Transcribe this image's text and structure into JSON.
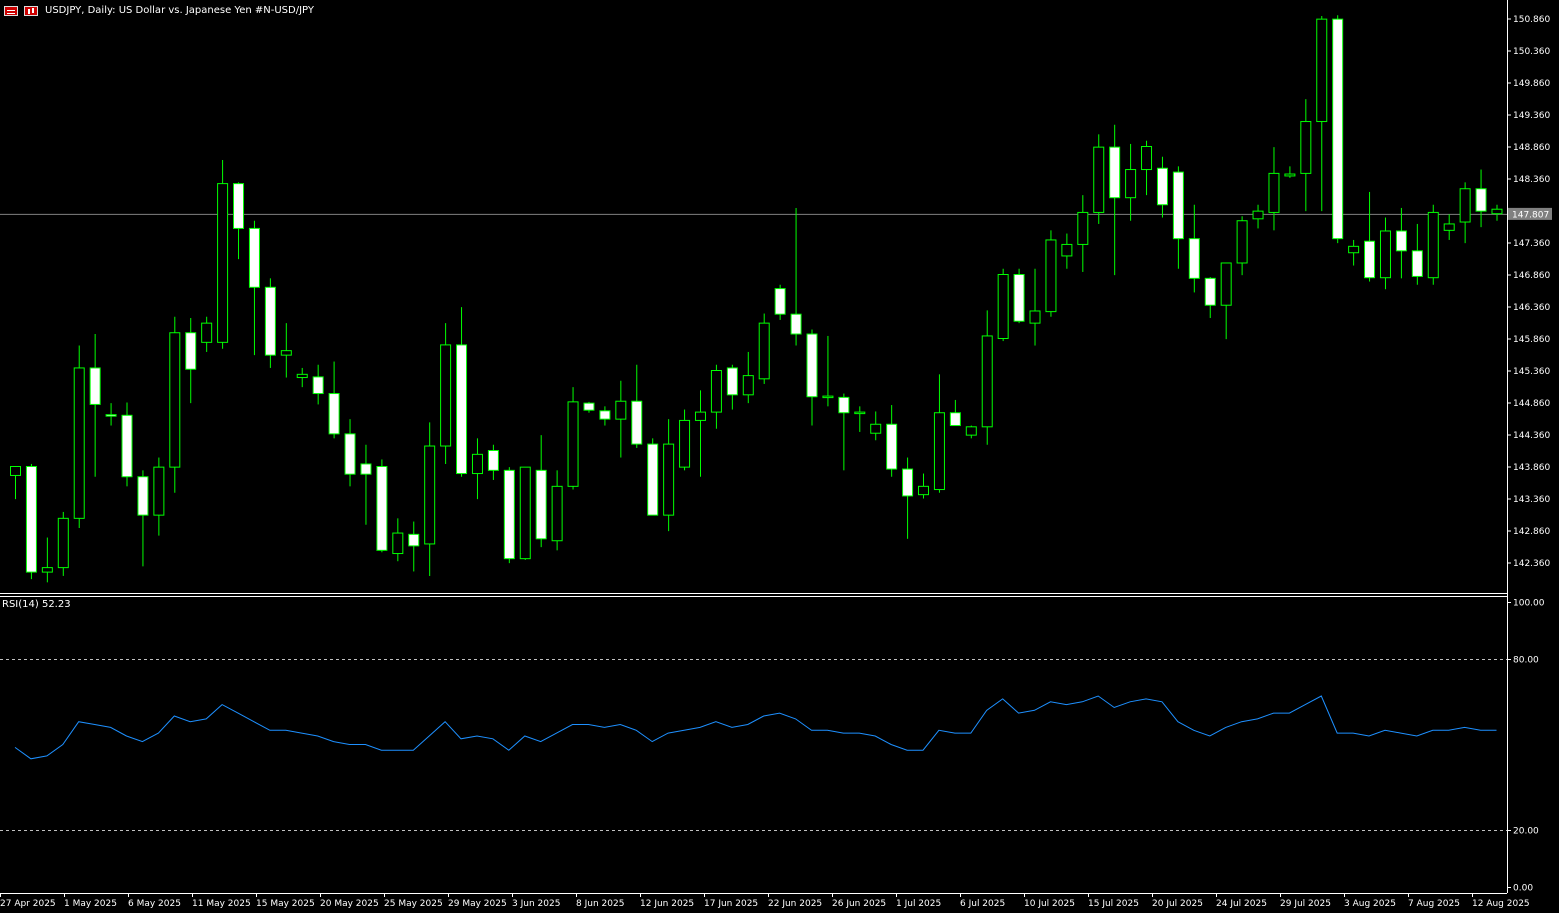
{
  "window": {
    "title": "USDJPY, Daily:  US Dollar vs. Japanese Yen #N-USD/JPY",
    "icons": [
      "table-icon",
      "bar-chart-icon"
    ]
  },
  "price_axis": {
    "labels": [
      "150.860",
      "150.360",
      "149.860",
      "149.360",
      "148.860",
      "148.360",
      "147.360",
      "146.860",
      "146.360",
      "145.860",
      "145.360",
      "144.860",
      "144.360",
      "143.860",
      "143.360",
      "142.860",
      "142.360"
    ],
    "current_price": "147.807"
  },
  "rsi": {
    "label": "RSI(14) 52.23",
    "axis_labels": [
      "100.00",
      "80.00",
      "20.00",
      "0.00"
    ]
  },
  "time_axis": {
    "labels": [
      "27 Apr 2025",
      "1 May 2025",
      "6 May 2025",
      "11 May 2025",
      "15 May 2025",
      "20 May 2025",
      "25 May 2025",
      "29 May 2025",
      "3 Jun 2025",
      "8 Jun 2025",
      "12 Jun 2025",
      "17 Jun 2025",
      "22 Jun 2025",
      "26 Jun 2025",
      "1 Jul 2025",
      "6 Jul 2025",
      "10 Jul 2025",
      "15 Jul 2025",
      "20 Jul 2025",
      "24 Jul 2025",
      "29 Jul 2025",
      "3 Aug 2025",
      "7 Aug 2025",
      "12 Aug 2025"
    ]
  },
  "colors": {
    "background": "#000000",
    "bull_body": "#000000",
    "bear_body": "#ffffff",
    "candle_outline": "#00ff00",
    "rsi_line": "#1e90ff",
    "price_line": "#808080",
    "axis_text": "#ffffff"
  },
  "chart_data": {
    "type": "candlestick",
    "symbol": "USDJPY",
    "timeframe": "Daily",
    "candles": [
      {
        "o": 143.72,
        "h": 143.86,
        "l": 143.35,
        "c": 143.86
      },
      {
        "o": 143.86,
        "h": 143.9,
        "l": 142.1,
        "c": 142.21
      },
      {
        "o": 142.21,
        "h": 142.75,
        "l": 142.05,
        "c": 142.28
      },
      {
        "o": 142.28,
        "h": 143.15,
        "l": 142.15,
        "c": 143.05
      },
      {
        "o": 143.05,
        "h": 145.75,
        "l": 142.9,
        "c": 145.4
      },
      {
        "o": 145.4,
        "h": 145.93,
        "l": 143.7,
        "c": 144.83
      },
      {
        "o": 144.67,
        "h": 144.85,
        "l": 144.5,
        "c": 144.66
      },
      {
        "o": 144.66,
        "h": 144.86,
        "l": 143.55,
        "c": 143.7
      },
      {
        "o": 143.7,
        "h": 143.8,
        "l": 142.3,
        "c": 143.1
      },
      {
        "o": 143.1,
        "h": 144.0,
        "l": 142.78,
        "c": 143.85
      },
      {
        "o": 143.85,
        "h": 146.2,
        "l": 143.45,
        "c": 145.95
      },
      {
        "o": 145.95,
        "h": 146.18,
        "l": 144.85,
        "c": 145.38
      },
      {
        "o": 145.8,
        "h": 146.2,
        "l": 145.65,
        "c": 146.1
      },
      {
        "o": 145.8,
        "h": 148.65,
        "l": 145.7,
        "c": 148.28
      },
      {
        "o": 148.28,
        "h": 148.3,
        "l": 147.1,
        "c": 147.58
      },
      {
        "o": 147.58,
        "h": 147.7,
        "l": 145.6,
        "c": 146.66
      },
      {
        "o": 146.66,
        "h": 146.8,
        "l": 145.4,
        "c": 145.6
      },
      {
        "o": 145.6,
        "h": 146.1,
        "l": 145.25,
        "c": 145.67
      },
      {
        "o": 145.25,
        "h": 145.4,
        "l": 145.1,
        "c": 145.3
      },
      {
        "o": 145.26,
        "h": 145.45,
        "l": 144.83,
        "c": 145.0
      },
      {
        "o": 145.0,
        "h": 145.5,
        "l": 144.3,
        "c": 144.37
      },
      {
        "o": 144.37,
        "h": 144.6,
        "l": 143.55,
        "c": 143.74
      },
      {
        "o": 143.9,
        "h": 144.2,
        "l": 142.95,
        "c": 143.74
      },
      {
        "o": 143.86,
        "h": 143.97,
        "l": 142.52,
        "c": 142.55
      },
      {
        "o": 142.5,
        "h": 143.05,
        "l": 142.38,
        "c": 142.82
      },
      {
        "o": 142.8,
        "h": 143.0,
        "l": 142.22,
        "c": 142.62
      },
      {
        "o": 142.65,
        "h": 144.55,
        "l": 142.15,
        "c": 144.18
      },
      {
        "o": 144.18,
        "h": 146.1,
        "l": 143.9,
        "c": 145.76
      },
      {
        "o": 145.76,
        "h": 146.35,
        "l": 143.7,
        "c": 143.75
      },
      {
        "o": 143.75,
        "h": 144.3,
        "l": 143.35,
        "c": 144.05
      },
      {
        "o": 144.11,
        "h": 144.2,
        "l": 143.65,
        "c": 143.8
      },
      {
        "o": 143.8,
        "h": 143.85,
        "l": 142.35,
        "c": 142.42
      },
      {
        "o": 142.42,
        "h": 143.85,
        "l": 142.4,
        "c": 143.85
      },
      {
        "o": 143.8,
        "h": 144.35,
        "l": 142.6,
        "c": 142.73
      },
      {
        "o": 142.7,
        "h": 143.8,
        "l": 142.55,
        "c": 143.55
      },
      {
        "o": 143.55,
        "h": 145.1,
        "l": 143.5,
        "c": 144.87
      },
      {
        "o": 144.85,
        "h": 144.87,
        "l": 144.7,
        "c": 144.74
      },
      {
        "o": 144.73,
        "h": 144.8,
        "l": 144.5,
        "c": 144.6
      },
      {
        "o": 144.6,
        "h": 145.2,
        "l": 144.0,
        "c": 144.88
      },
      {
        "o": 144.88,
        "h": 145.45,
        "l": 144.15,
        "c": 144.21
      },
      {
        "o": 144.21,
        "h": 144.3,
        "l": 143.1,
        "c": 143.1
      },
      {
        "o": 143.1,
        "h": 144.6,
        "l": 142.85,
        "c": 144.21
      },
      {
        "o": 143.85,
        "h": 144.75,
        "l": 143.8,
        "c": 144.58
      },
      {
        "o": 144.58,
        "h": 145.05,
        "l": 143.7,
        "c": 144.71
      },
      {
        "o": 144.71,
        "h": 145.45,
        "l": 144.45,
        "c": 145.36
      },
      {
        "o": 145.4,
        "h": 145.45,
        "l": 144.75,
        "c": 144.98
      },
      {
        "o": 144.98,
        "h": 145.65,
        "l": 144.85,
        "c": 145.28
      },
      {
        "o": 145.23,
        "h": 146.25,
        "l": 145.15,
        "c": 146.1
      },
      {
        "o": 146.64,
        "h": 146.7,
        "l": 146.15,
        "c": 146.24
      },
      {
        "o": 146.24,
        "h": 147.9,
        "l": 145.75,
        "c": 145.93
      },
      {
        "o": 145.93,
        "h": 146.0,
        "l": 144.5,
        "c": 144.95
      },
      {
        "o": 144.94,
        "h": 145.9,
        "l": 144.8,
        "c": 144.96
      },
      {
        "o": 144.94,
        "h": 145.0,
        "l": 143.8,
        "c": 144.7
      },
      {
        "o": 144.7,
        "h": 144.8,
        "l": 144.4,
        "c": 144.71
      },
      {
        "o": 144.38,
        "h": 144.72,
        "l": 144.27,
        "c": 144.52
      },
      {
        "o": 144.52,
        "h": 144.82,
        "l": 143.7,
        "c": 143.82
      },
      {
        "o": 143.82,
        "h": 144.0,
        "l": 142.73,
        "c": 143.4
      },
      {
        "o": 143.42,
        "h": 143.75,
        "l": 143.36,
        "c": 143.55
      },
      {
        "o": 143.5,
        "h": 145.3,
        "l": 143.45,
        "c": 144.7
      },
      {
        "o": 144.7,
        "h": 144.9,
        "l": 144.55,
        "c": 144.5
      },
      {
        "o": 144.35,
        "h": 144.5,
        "l": 144.3,
        "c": 144.48
      },
      {
        "o": 144.48,
        "h": 146.3,
        "l": 144.2,
        "c": 145.9
      },
      {
        "o": 145.86,
        "h": 146.95,
        "l": 145.82,
        "c": 146.86
      },
      {
        "o": 146.86,
        "h": 146.95,
        "l": 146.1,
        "c": 146.13
      },
      {
        "o": 146.1,
        "h": 146.95,
        "l": 145.75,
        "c": 146.29
      },
      {
        "o": 146.28,
        "h": 147.55,
        "l": 146.2,
        "c": 147.4
      },
      {
        "o": 147.15,
        "h": 147.5,
        "l": 146.95,
        "c": 147.33
      },
      {
        "o": 147.33,
        "h": 148.1,
        "l": 146.9,
        "c": 147.83
      },
      {
        "o": 147.83,
        "h": 149.05,
        "l": 147.65,
        "c": 148.85
      },
      {
        "o": 148.85,
        "h": 149.2,
        "l": 146.85,
        "c": 148.06
      },
      {
        "o": 148.06,
        "h": 148.9,
        "l": 147.7,
        "c": 148.5
      },
      {
        "o": 148.5,
        "h": 148.95,
        "l": 148.1,
        "c": 148.86
      },
      {
        "o": 148.52,
        "h": 148.7,
        "l": 147.75,
        "c": 147.95
      },
      {
        "o": 148.46,
        "h": 148.55,
        "l": 146.95,
        "c": 147.42
      },
      {
        "o": 147.42,
        "h": 147.95,
        "l": 146.58,
        "c": 146.8
      },
      {
        "o": 146.8,
        "h": 146.82,
        "l": 146.18,
        "c": 146.38
      },
      {
        "o": 146.38,
        "h": 147.03,
        "l": 145.85,
        "c": 147.04
      },
      {
        "o": 147.04,
        "h": 147.77,
        "l": 146.85,
        "c": 147.7
      },
      {
        "o": 147.73,
        "h": 147.95,
        "l": 147.58,
        "c": 147.85
      },
      {
        "o": 147.83,
        "h": 148.85,
        "l": 147.55,
        "c": 148.44
      },
      {
        "o": 148.4,
        "h": 148.55,
        "l": 148.37,
        "c": 148.43
      },
      {
        "o": 148.44,
        "h": 149.6,
        "l": 147.85,
        "c": 149.25
      },
      {
        "o": 149.25,
        "h": 150.9,
        "l": 147.85,
        "c": 150.85
      },
      {
        "o": 150.85,
        "h": 150.91,
        "l": 147.35,
        "c": 147.42
      },
      {
        "o": 147.2,
        "h": 147.4,
        "l": 147.0,
        "c": 147.3
      },
      {
        "o": 147.38,
        "h": 148.15,
        "l": 146.75,
        "c": 146.81
      },
      {
        "o": 146.81,
        "h": 147.75,
        "l": 146.63,
        "c": 147.54
      },
      {
        "o": 147.54,
        "h": 147.9,
        "l": 146.8,
        "c": 147.23
      },
      {
        "o": 147.23,
        "h": 147.65,
        "l": 146.7,
        "c": 146.83
      },
      {
        "o": 146.81,
        "h": 147.95,
        "l": 146.7,
        "c": 147.83
      },
      {
        "o": 147.55,
        "h": 147.8,
        "l": 147.4,
        "c": 147.65
      },
      {
        "o": 147.68,
        "h": 148.3,
        "l": 147.35,
        "c": 148.2
      },
      {
        "o": 148.2,
        "h": 148.5,
        "l": 147.6,
        "c": 147.85
      },
      {
        "o": 147.81,
        "h": 147.95,
        "l": 147.7,
        "c": 147.88
      }
    ],
    "rsi": [
      49,
      45,
      46,
      50,
      58,
      57,
      56,
      53,
      51,
      54,
      60,
      58,
      59,
      64,
      61,
      58,
      55,
      55,
      54,
      53,
      51,
      50,
      50,
      48,
      48,
      48,
      53,
      58,
      52,
      53,
      52,
      48,
      53,
      51,
      54,
      57,
      57,
      56,
      57,
      55,
      51,
      54,
      55,
      56,
      58,
      56,
      57,
      60,
      61,
      59,
      55,
      55,
      54,
      54,
      53,
      50,
      48,
      48,
      55,
      54,
      54,
      62,
      66,
      61,
      62,
      65,
      64,
      65,
      67,
      63,
      65,
      66,
      65,
      58,
      55,
      53,
      56,
      58,
      59,
      61,
      61,
      64,
      67,
      54,
      54,
      53,
      55,
      54,
      53,
      55,
      55,
      56,
      55,
      55
    ],
    "price_range": [
      142.06,
      150.96
    ],
    "rsi_range": [
      0,
      100
    ],
    "rsi_levels": [
      80,
      20
    ]
  }
}
